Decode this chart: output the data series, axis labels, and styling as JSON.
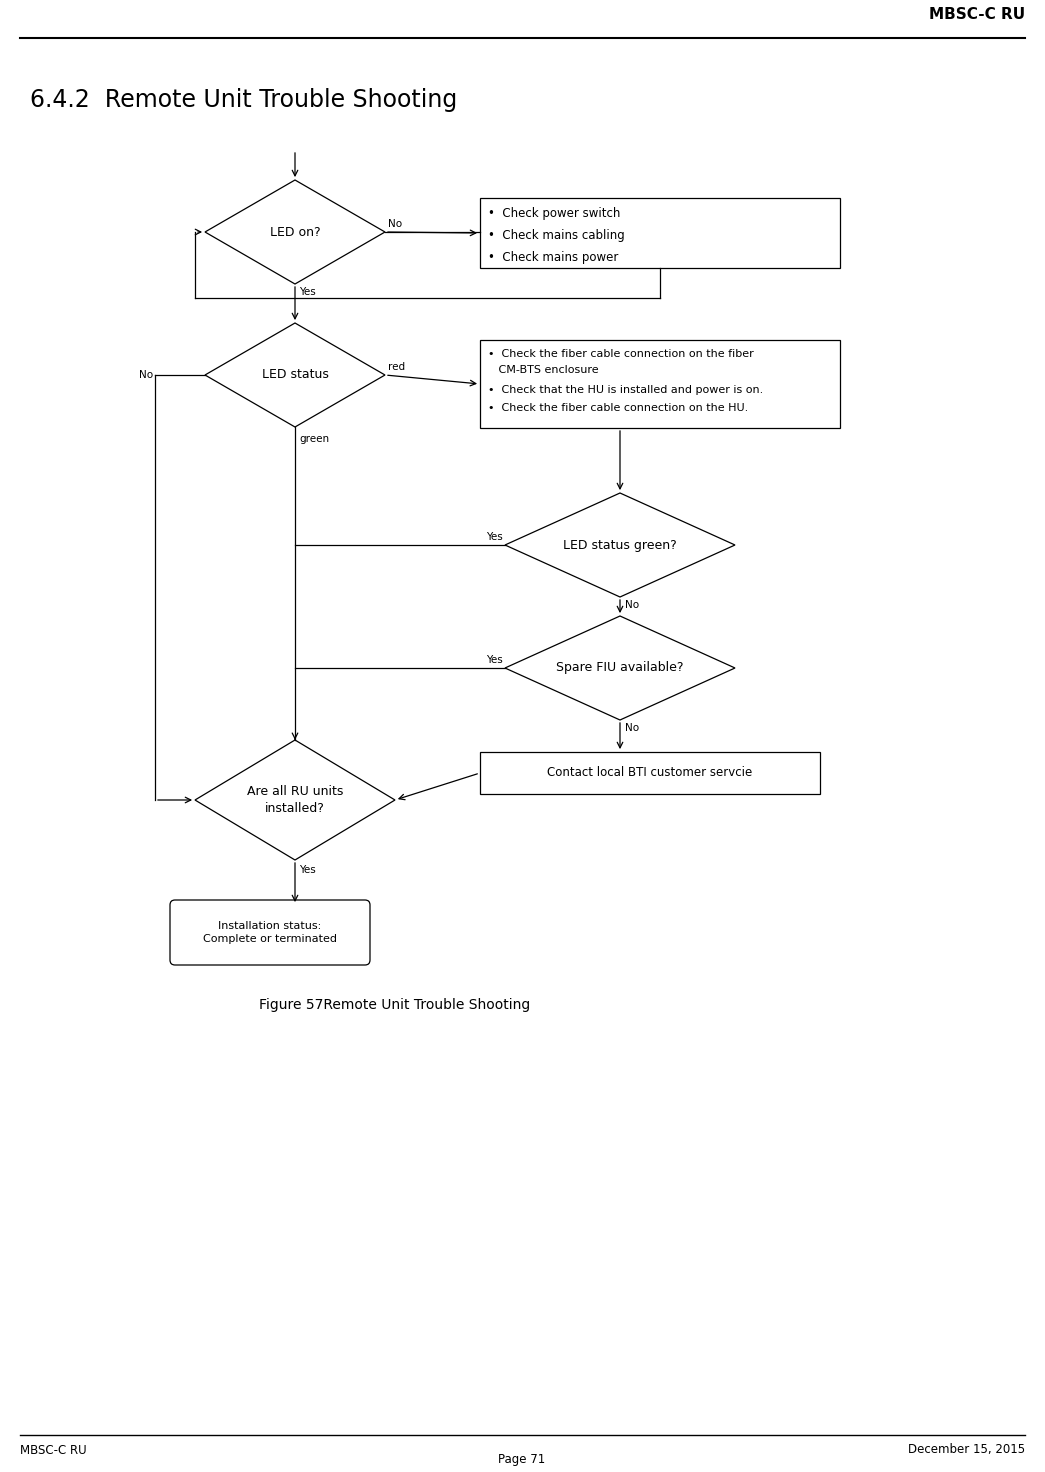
{
  "page_title": "MBSC-C RU",
  "section_title": "6.4.2  Remote Unit Trouble Shooting",
  "footer_left": "MBSC-C RU",
  "footer_right": "December 15, 2015",
  "footer_center": "Page 71",
  "figure_caption": "Figure 57Remote Unit Trouble Shooting",
  "background_color": "#ffffff",
  "check_power_lines": [
    "•  Check power switch",
    "•  Check mains cabling",
    "•  Check mains power"
  ],
  "check_fiber_lines": [
    "•  Check the fiber cable connection on the fiber",
    "   CM-BTS enclosure",
    "•  Check that the HU is installed and power is on.",
    "•  Check the fiber cable connection on the HU."
  ],
  "contact_bti_text": "Contact local BTI customer servcie",
  "install_text": "Installation status:\nComplete or terminated",
  "led_on_label": "LED on?",
  "led_status_label": "LED status",
  "led_green_label": "LED status green?",
  "spare_fiu_label": "Spare FIU available?",
  "all_ru_label": "Are all RU units\ninstalled?"
}
